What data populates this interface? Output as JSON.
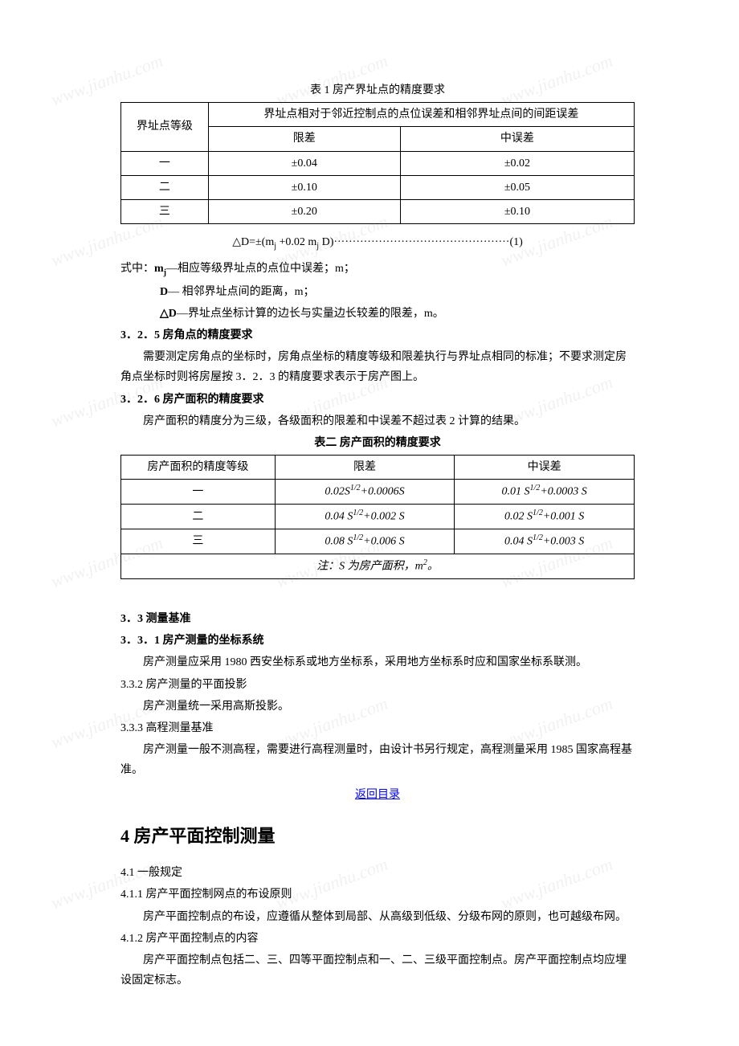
{
  "watermark_text": "www.jianhu.com",
  "table1": {
    "caption": "表 1  房产界址点的精度要求",
    "header_rowspan": "界址点等级",
    "header_colspan": "界址点相对于邻近控制点的点位误差和相邻界址点间的间距误差",
    "sub_headers": [
      "限差",
      "中误差"
    ],
    "rows": [
      {
        "level": "一",
        "limit": "±0.04",
        "mid": "±0.02"
      },
      {
        "level": "二",
        "limit": "±0.10",
        "mid": "±0.05"
      },
      {
        "level": "三",
        "limit": "±0.20",
        "mid": "±0.10"
      }
    ]
  },
  "formula1": "△D=±(mj +0.02 mj D)···············································(1)",
  "formula_defs": {
    "intro": "式中：",
    "mj_label": "mj",
    "mj_text": "—相应等级界址点的点位中误差；m；",
    "d_label": "D",
    "d_text": "— 相邻界址点间的距离，m；",
    "dd_label": "△D",
    "dd_text": "—界址点坐标计算的边长与实量边长较差的限差，m。"
  },
  "s325_heading": "3．2．5 房角点的精度要求",
  "s325_p1": "需要测定房角点的坐标时，房角点坐标的精度等级和限差执行与界址点相同的标准；不要求测定房角点坐标时则将房屋按 3．2．3 的精度要求表示于房产图上。",
  "s326_heading": "3．2．6 房产面积的精度要求",
  "s326_p1": "房产面积的精度分为三级，各级面积的限差和中误差不超过表 2 计算的结果。",
  "table2": {
    "caption": "表二  房产面积的精度要求",
    "headers": [
      "房产面积的精度等级",
      "限差",
      "中误差"
    ],
    "rows": [
      {
        "level": "一",
        "limit_a": "0.02S",
        "limit_exp": "1/2",
        "limit_b": "+0.0006S",
        "mid_a": "0.01 S",
        "mid_exp": "1/2",
        "mid_b": "+0.0003 S"
      },
      {
        "level": "二",
        "limit_a": "0.04 S",
        "limit_exp": "1/2",
        "limit_b": "+0.002 S",
        "mid_a": "0.02 S",
        "mid_exp": "1/2",
        "mid_b": "+0.001 S"
      },
      {
        "level": "三",
        "limit_a": "0.08 S",
        "limit_exp": "1/2",
        "limit_b": "+0.006 S",
        "mid_a": "0.04 S",
        "mid_exp": "1/2",
        "mid_b": "+0.003 S"
      }
    ],
    "note_a": "注：S 为房产面积，m",
    "note_exp": "2",
    "note_b": "。"
  },
  "s33_heading": "3．3 测量基准",
  "s331_heading": "3．3．1  房产测量的坐标系统",
  "s331_p1": "房产测量应采用 1980 西安坐标系或地方坐标系，采用地方坐标系时应和国家坐标系联测。",
  "s332_heading": "3.3.2 房产测量的平面投影",
  "s332_p1": "房产测量统一采用高斯投影。",
  "s333_heading": "3.3.3 高程测量基准",
  "s333_p1": "房产测量一般不测高程，需要进行高程测量时，由设计书另行规定，高程测量采用 1985 国家高程基准。",
  "toc_link": "返回目录",
  "chapter4_title": "4 房产平面控制测量",
  "s41_heading": "4.1 一般规定",
  "s411_heading": "4.1.1 房产平面控制网点的布设原则",
  "s411_p1": "房产平面控制点的布设，应遵循从整体到局部、从高级到低级、分级布网的原则，也可越级布网。",
  "s412_heading": "4.1.2 房产平面控制点的内容",
  "s412_p1": "房产平面控制点包括二、三、四等平面控制点和一、二、三级平面控制点。房产平面控制点均应埋设固定标志。"
}
